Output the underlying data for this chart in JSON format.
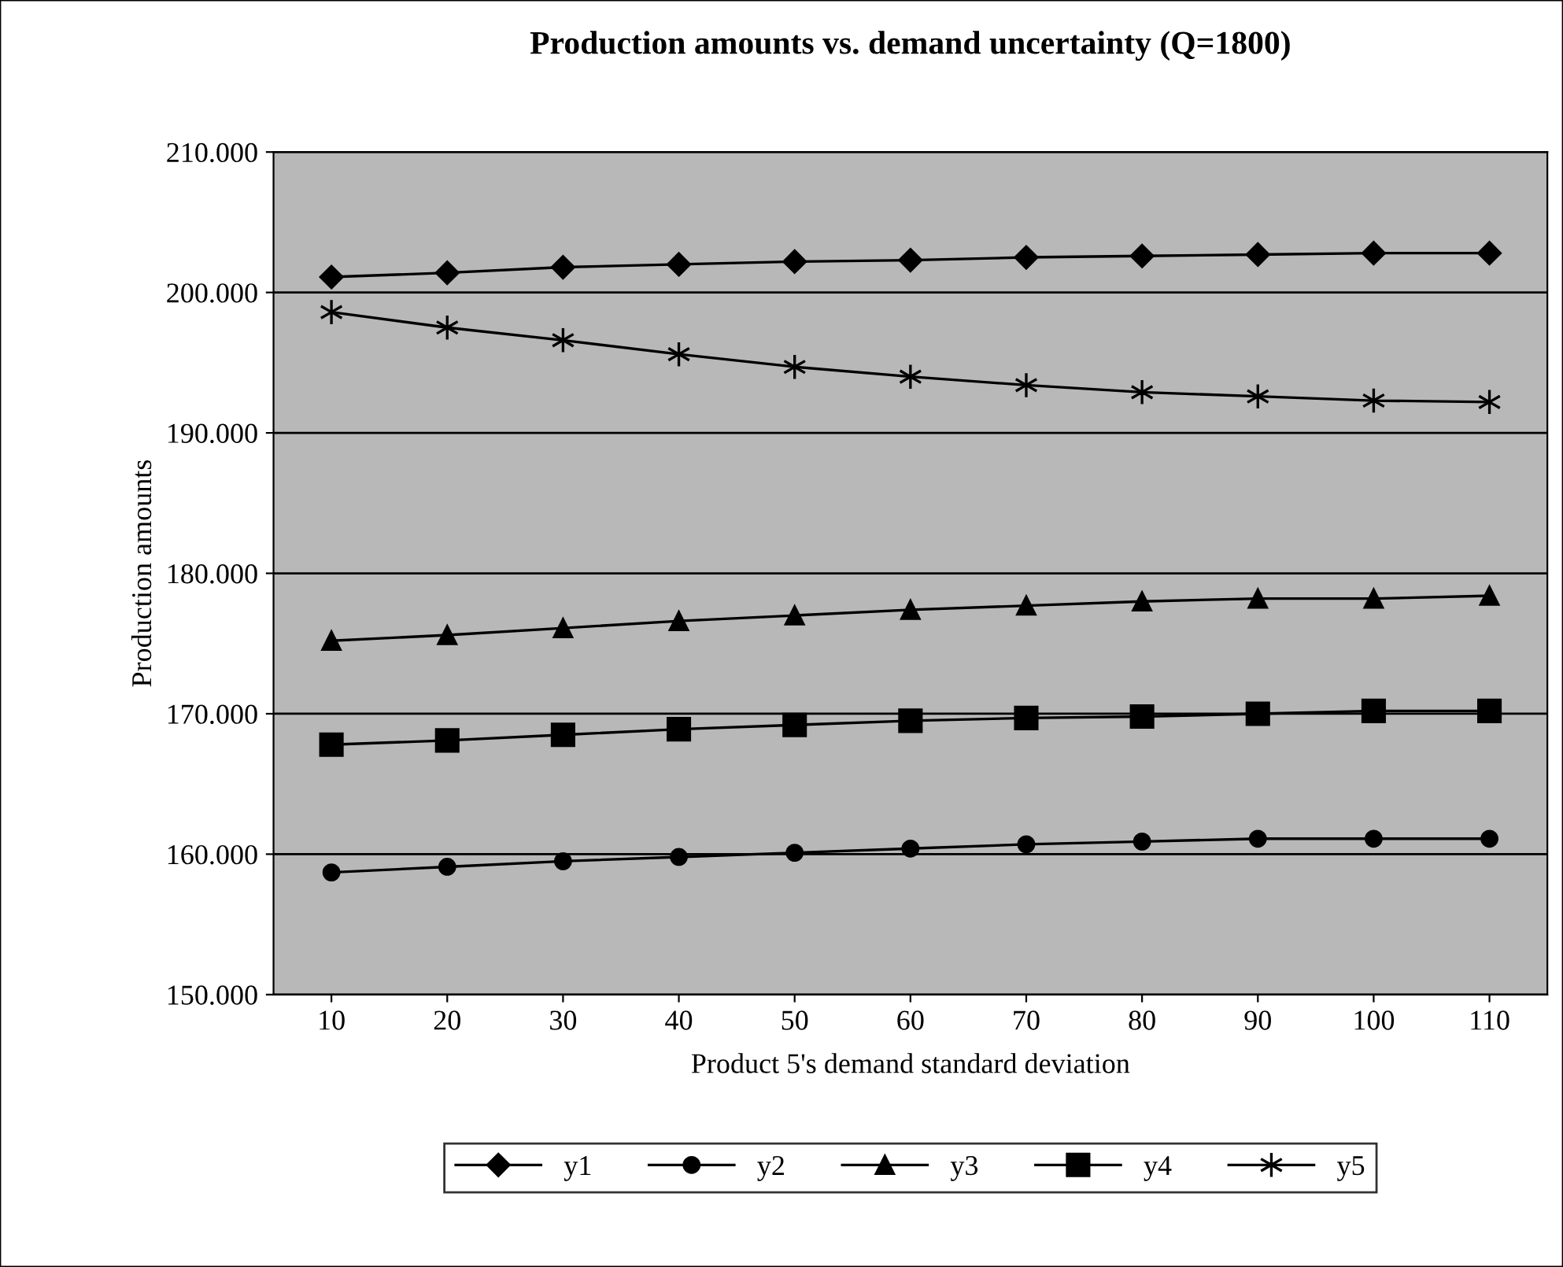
{
  "chart_data": {
    "type": "line",
    "title": "Production amounts vs. demand uncertainty (Q=1800)",
    "xlabel": "Product 5's demand standard deviation",
    "ylabel": "Production amounts",
    "categories": [
      "10",
      "20",
      "30",
      "40",
      "50",
      "60",
      "70",
      "80",
      "90",
      "100",
      "110"
    ],
    "series": [
      {
        "name": "y1",
        "color": "#000000",
        "marker": "diamond",
        "values": [
          201100,
          201400,
          201800,
          202000,
          202200,
          202300,
          202500,
          202600,
          202700,
          202800,
          202800
        ]
      },
      {
        "name": "y2",
        "color": "#000000",
        "marker": "circle",
        "values": [
          158700,
          159100,
          159500,
          159800,
          160100,
          160400,
          160700,
          160900,
          161100,
          161100,
          161100
        ]
      },
      {
        "name": "y3",
        "color": "#000000",
        "marker": "triangle",
        "values": [
          175200,
          175600,
          176100,
          176600,
          177000,
          177400,
          177700,
          178000,
          178200,
          178200,
          178400
        ]
      },
      {
        "name": "y4",
        "color": "#000000",
        "marker": "square",
        "values": [
          167800,
          168100,
          168500,
          168900,
          169200,
          169500,
          169700,
          169800,
          170000,
          170200,
          170200
        ]
      },
      {
        "name": "y5",
        "color": "#000000",
        "marker": "cross",
        "values": [
          198600,
          197500,
          196600,
          195600,
          194700,
          194000,
          193400,
          192900,
          192600,
          192300,
          192200
        ]
      }
    ],
    "ylim": [
      150000,
      210000
    ],
    "yticks": [
      {
        "value": 150000,
        "label": "150.000"
      },
      {
        "value": 160000,
        "label": "160.000"
      },
      {
        "value": 170000,
        "label": "170.000"
      },
      {
        "value": 180000,
        "label": "180.000"
      },
      {
        "value": 190000,
        "label": "190.000"
      },
      {
        "value": 200000,
        "label": "200.000"
      },
      {
        "value": 210000,
        "label": "210.000"
      }
    ],
    "grid": "y",
    "legend": "bottom",
    "line_style": "solid"
  }
}
